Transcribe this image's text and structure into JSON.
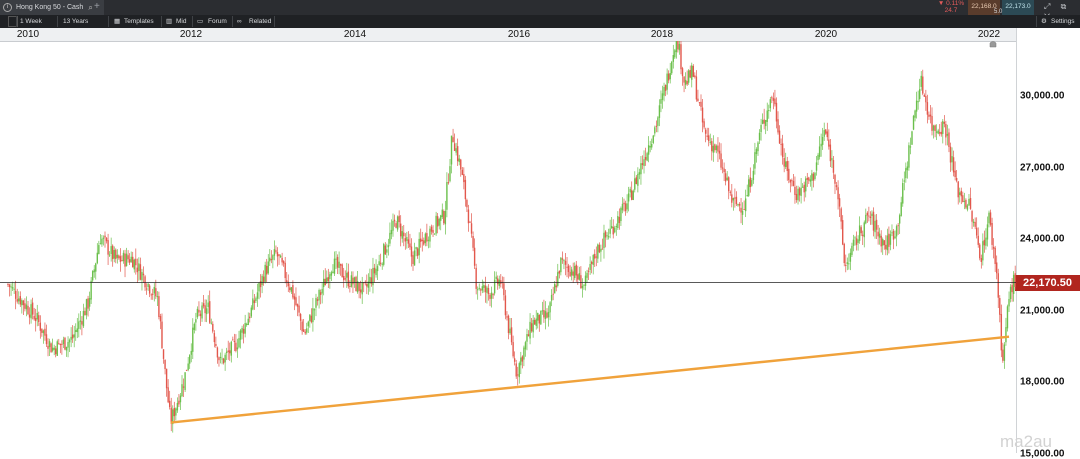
{
  "topbar": {
    "tab_title": "Hong Kong 50 - Cash",
    "tab_icon": "info-icon",
    "search_icon": "search-icon",
    "plus": "+",
    "change_pct": "▼ 0.11%",
    "change_pts": "24.7",
    "sell": "22,168.0",
    "buy": "22,173.0",
    "spread": "5.0",
    "window_buttons": "⤢ ⧉ ✕"
  },
  "toolbar": {
    "interval": "1 Week",
    "range": "13 Years",
    "templates": "Templates",
    "mid": "Mid",
    "forum": "Forum",
    "related": "Related",
    "settings": "Settings",
    "icons": {
      "templates": "templates-icon",
      "mid": "chart-icon",
      "forum": "forum-icon",
      "related": "link-icon",
      "settings": "gear-icon"
    }
  },
  "colors": {
    "up": "#6abf4b",
    "down": "#e2574c",
    "trend": "#f0a23b",
    "current_label": "#b1261f"
  },
  "watermark": "ma2au",
  "chart_data": {
    "type": "candlestick",
    "symbol": "Hong Kong 50 - Cash",
    "interval": "1 Week",
    "x_ticks": [
      "2010",
      "2012",
      "2014",
      "2016",
      "2018",
      "2020",
      "2022"
    ],
    "x_range": [
      2009.75,
      2022.35
    ],
    "y_ticks": [
      "30,000.00",
      "27,000.00",
      "24,000.00",
      "21,000.00",
      "18,000.00",
      "15,000.00"
    ],
    "y_range": [
      14800,
      32800
    ],
    "current_price": 22170.5,
    "current_price_label": "22,170.50",
    "trendline": {
      "start": {
        "x": 2011.78,
        "y": 16300
      },
      "end": {
        "x": 2022.25,
        "y": 19900
      }
    },
    "price_path": [
      [
        2009.75,
        22100
      ],
      [
        2010.1,
        20700
      ],
      [
        2010.3,
        19400
      ],
      [
        2010.55,
        19800
      ],
      [
        2010.75,
        21300
      ],
      [
        2010.9,
        24100
      ],
      [
        2011.1,
        23100
      ],
      [
        2011.3,
        23200
      ],
      [
        2011.5,
        22100
      ],
      [
        2011.62,
        21500
      ],
      [
        2011.72,
        18100
      ],
      [
        2011.78,
        16300
      ],
      [
        2011.95,
        18100
      ],
      [
        2012.1,
        20700
      ],
      [
        2012.25,
        21100
      ],
      [
        2012.4,
        18800
      ],
      [
        2012.6,
        19600
      ],
      [
        2012.8,
        21100
      ],
      [
        2012.95,
        22600
      ],
      [
        2013.1,
        23400
      ],
      [
        2013.3,
        21800
      ],
      [
        2013.45,
        20000
      ],
      [
        2013.6,
        21300
      ],
      [
        2013.8,
        23000
      ],
      [
        2014.0,
        22300
      ],
      [
        2014.2,
        21800
      ],
      [
        2014.4,
        23100
      ],
      [
        2014.6,
        24800
      ],
      [
        2014.8,
        23200
      ],
      [
        2015.0,
        24300
      ],
      [
        2015.2,
        25000
      ],
      [
        2015.3,
        28400
      ],
      [
        2015.4,
        27000
      ],
      [
        2015.5,
        25000
      ],
      [
        2015.6,
        22100
      ],
      [
        2015.75,
        21700
      ],
      [
        2015.9,
        22300
      ],
      [
        2016.05,
        19300
      ],
      [
        2016.1,
        18400
      ],
      [
        2016.3,
        20500
      ],
      [
        2016.5,
        20800
      ],
      [
        2016.65,
        23000
      ],
      [
        2016.8,
        22700
      ],
      [
        2016.95,
        22000
      ],
      [
        2017.1,
        23500
      ],
      [
        2017.3,
        24500
      ],
      [
        2017.5,
        25600
      ],
      [
        2017.7,
        27500
      ],
      [
        2017.85,
        28900
      ],
      [
        2018.0,
        31000
      ],
      [
        2018.1,
        32600
      ],
      [
        2018.2,
        30500
      ],
      [
        2018.3,
        31000
      ],
      [
        2018.45,
        28400
      ],
      [
        2018.6,
        27700
      ],
      [
        2018.8,
        25500
      ],
      [
        2018.95,
        25400
      ],
      [
        2019.15,
        28600
      ],
      [
        2019.3,
        30100
      ],
      [
        2019.45,
        27000
      ],
      [
        2019.6,
        25900
      ],
      [
        2019.8,
        26600
      ],
      [
        2019.95,
        28600
      ],
      [
        2020.1,
        26300
      ],
      [
        2020.2,
        22800
      ],
      [
        2020.35,
        24000
      ],
      [
        2020.5,
        25000
      ],
      [
        2020.7,
        23700
      ],
      [
        2020.85,
        24500
      ],
      [
        2020.95,
        26600
      ],
      [
        2021.1,
        29900
      ],
      [
        2021.15,
        30600
      ],
      [
        2021.3,
        28600
      ],
      [
        2021.45,
        28800
      ],
      [
        2021.6,
        26100
      ],
      [
        2021.75,
        25400
      ],
      [
        2021.9,
        23300
      ],
      [
        2022.0,
        24900
      ],
      [
        2022.1,
        22500
      ],
      [
        2022.17,
        18800
      ],
      [
        2022.25,
        21600
      ],
      [
        2022.3,
        22200
      ]
    ]
  }
}
